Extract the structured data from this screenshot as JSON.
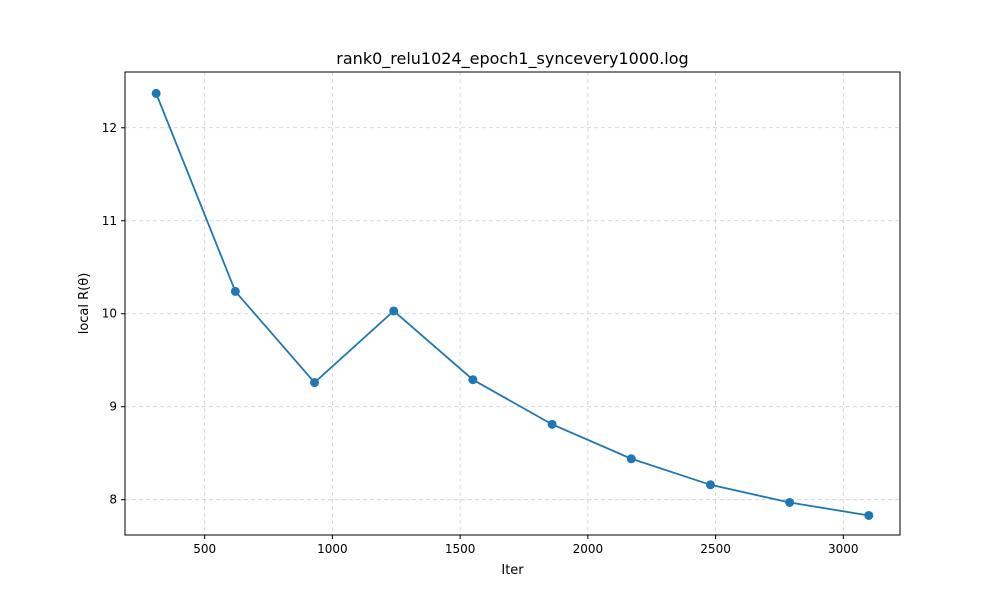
{
  "chart_data": {
    "type": "line",
    "title": "rank0_relu1024_epoch1_syncevery1000.log",
    "xlabel": "Iter",
    "ylabel": "local R(θ)",
    "xlim": [
      188,
      3222
    ],
    "ylim": [
      7.62,
      12.6
    ],
    "xticks": [
      500,
      1000,
      1500,
      2000,
      2500,
      3000
    ],
    "yticks": [
      8,
      9,
      10,
      11,
      12
    ],
    "grid": true,
    "series": [
      {
        "color": "#1f77b4",
        "marker": "circle",
        "x": [
          310,
          620,
          930,
          1240,
          1550,
          1860,
          2170,
          2480,
          2790,
          3100
        ],
        "y": [
          12.37,
          10.24,
          9.26,
          10.03,
          9.29,
          8.81,
          8.44,
          8.16,
          7.97,
          7.83
        ]
      }
    ]
  }
}
